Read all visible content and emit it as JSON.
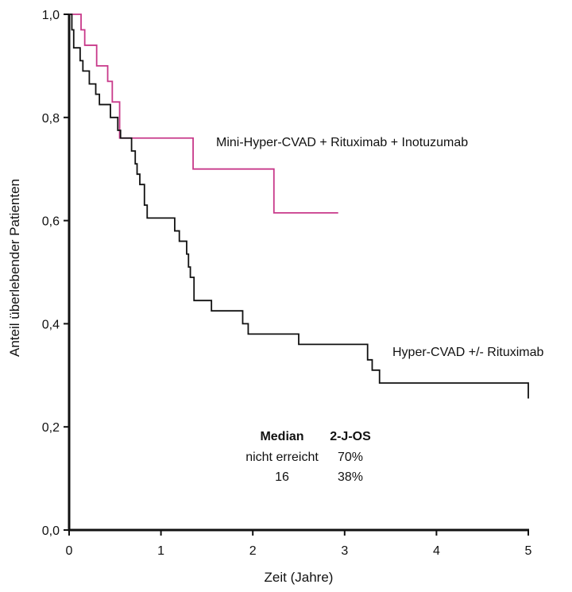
{
  "chart_data": {
    "type": "line",
    "title": "",
    "xlabel": "Zeit (Jahre)",
    "ylabel": "Anteil überlebender Patienten",
    "xlim": [
      0,
      5
    ],
    "ylim": [
      0,
      1
    ],
    "x_ticks": [
      0,
      1,
      2,
      3,
      4,
      5
    ],
    "x_tick_labels": [
      "0",
      "1",
      "2",
      "3",
      "4",
      "5"
    ],
    "y_ticks": [
      0,
      0.2,
      0.4,
      0.6,
      0.8,
      1.0
    ],
    "y_tick_labels": [
      "0,0",
      "0,2",
      "0,4",
      "0,6",
      "0,8",
      "1,0"
    ],
    "grid": false,
    "legend": "inline labels",
    "series": [
      {
        "name": "Mini-Hyper-CVAD + Rituximab + Inotuzumab",
        "color": "#c8398a",
        "steps": [
          [
            0,
            1.0
          ],
          [
            0.13,
            0.97
          ],
          [
            0.17,
            0.94
          ],
          [
            0.3,
            0.9
          ],
          [
            0.42,
            0.87
          ],
          [
            0.47,
            0.83
          ],
          [
            0.55,
            0.76
          ],
          [
            1.35,
            0.7
          ],
          [
            2.23,
            0.615
          ],
          [
            2.93,
            0.615
          ]
        ]
      },
      {
        "name": "Hyper-CVAD +/- Rituximab",
        "color": "#111111",
        "steps": [
          [
            0,
            1.0
          ],
          [
            0.03,
            0.97
          ],
          [
            0.05,
            0.935
          ],
          [
            0.12,
            0.91
          ],
          [
            0.15,
            0.89
          ],
          [
            0.22,
            0.865
          ],
          [
            0.29,
            0.845
          ],
          [
            0.33,
            0.825
          ],
          [
            0.45,
            0.8
          ],
          [
            0.53,
            0.775
          ],
          [
            0.56,
            0.76
          ],
          [
            0.68,
            0.735
          ],
          [
            0.72,
            0.71
          ],
          [
            0.74,
            0.69
          ],
          [
            0.77,
            0.67
          ],
          [
            0.82,
            0.63
          ],
          [
            0.85,
            0.605
          ],
          [
            1.15,
            0.58
          ],
          [
            1.2,
            0.56
          ],
          [
            1.28,
            0.535
          ],
          [
            1.3,
            0.51
          ],
          [
            1.32,
            0.49
          ],
          [
            1.36,
            0.445
          ],
          [
            1.55,
            0.425
          ],
          [
            1.89,
            0.4
          ],
          [
            1.95,
            0.38
          ],
          [
            2.5,
            0.36
          ],
          [
            3.25,
            0.33
          ],
          [
            3.3,
            0.31
          ],
          [
            3.38,
            0.285
          ],
          [
            5.0,
            0.285
          ]
        ],
        "censor_drop_end": 0.255
      }
    ],
    "annotation_table": {
      "headers": [
        "Median",
        "2-J-OS"
      ],
      "rows": [
        [
          "nicht erreicht",
          "70%"
        ],
        [
          "16",
          "38%"
        ]
      ]
    }
  }
}
